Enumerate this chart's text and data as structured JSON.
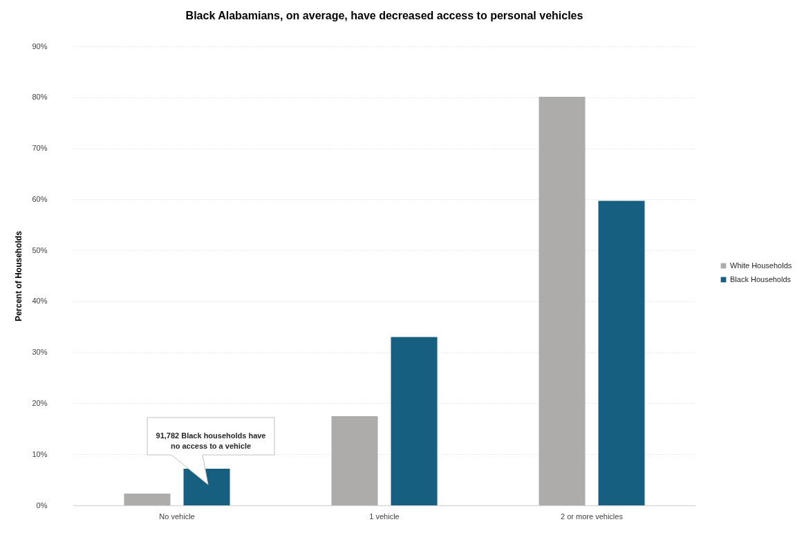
{
  "chart_data": {
    "type": "bar",
    "title": "Black Alabamians, on average, have decreased access to personal vehicles",
    "ylabel": "Percent of Households",
    "categories": [
      "No vehicle",
      "1 vehicle",
      "2 or more vehicles"
    ],
    "series": [
      {
        "name": "White Households",
        "color": "#aeabab",
        "values": [
          2.3,
          17.5,
          80.1
        ]
      },
      {
        "name": "Black Households",
        "color": "#175f80",
        "values": [
          7.2,
          33.0,
          59.7
        ]
      }
    ],
    "ylim": [
      0,
      90
    ],
    "yticks": [
      {
        "value": 0,
        "label": "0%"
      },
      {
        "value": 10,
        "label": "10%"
      },
      {
        "value": 20,
        "label": "20%"
      },
      {
        "value": 30,
        "label": "30%"
      },
      {
        "value": 40,
        "label": "40%"
      },
      {
        "value": 50,
        "label": "50%"
      },
      {
        "value": 60,
        "label": "60%"
      },
      {
        "value": 70,
        "label": "70%"
      },
      {
        "value": 80,
        "label": "80%"
      },
      {
        "value": 90,
        "label": "90%"
      }
    ],
    "annotations": [
      "91,782 Black households have no access to a vehicle"
    ],
    "grid": "y",
    "legend": "right"
  }
}
